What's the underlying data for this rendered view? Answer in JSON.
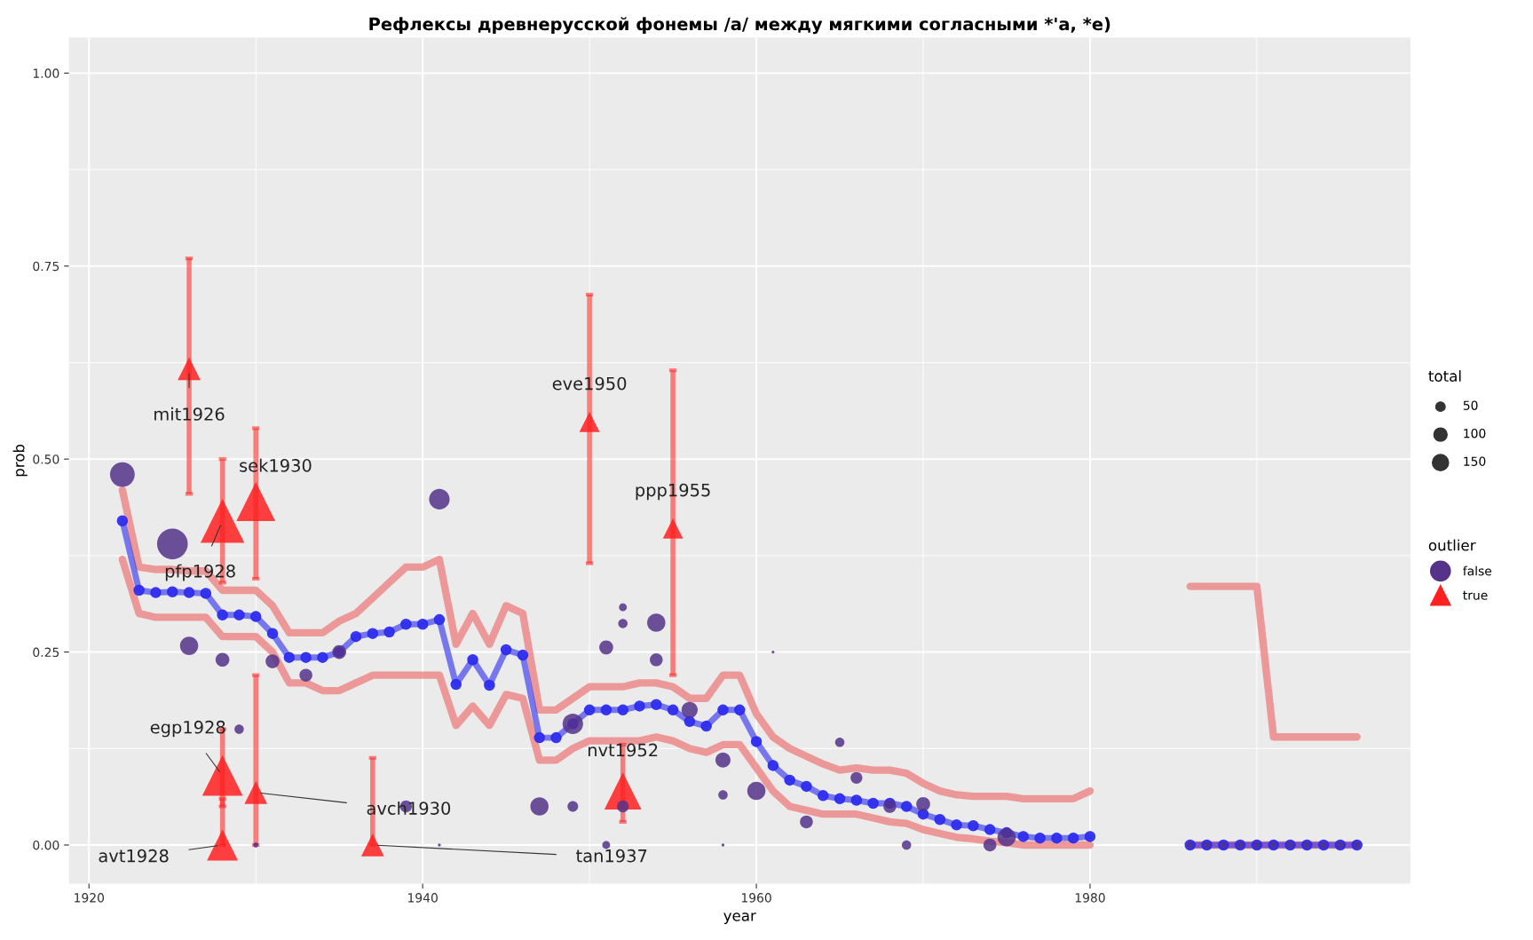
{
  "chart_data": {
    "type": "scatter",
    "title": "Рефлексы древнерусской фонемы /а/ между мягкими согласными *'а, *е)",
    "xlabel": "year",
    "ylabel": "prob",
    "xlim": [
      1918.8,
      1999.2
    ],
    "xticks": [
      1920,
      1940,
      1960,
      1980
    ],
    "ylim": [
      -0.05,
      1.046
    ],
    "yticks": [
      {
        "value": 0,
        "label": "0.00"
      },
      {
        "value": 0.25,
        "label": "0.25"
      },
      {
        "value": 0.5,
        "label": "0.50"
      },
      {
        "value": 0.75,
        "label": "0.75"
      },
      {
        "value": 1,
        "label": "1.00"
      }
    ],
    "grid": true,
    "legend": "right",
    "legend_title": [
      "total",
      "outlier"
    ],
    "size_legend": [
      50,
      100,
      150
    ],
    "series": [
      {
        "type": "line",
        "color": "#ec8a8a",
        "marker": "none",
        "x": [
          1922,
          1923,
          1924,
          1925,
          1926,
          1927,
          1928,
          1929,
          1930,
          1931,
          1932,
          1933,
          1934,
          1935,
          1936,
          1937,
          1938,
          1939,
          1940,
          1941,
          1942,
          1943,
          1944,
          1945,
          1946,
          1947,
          1948,
          1949,
          1950,
          1951,
          1952,
          1953,
          1954,
          1955,
          1956,
          1957,
          1958,
          1959,
          1960,
          1961,
          1962,
          1963,
          1964,
          1965,
          1966,
          1967,
          1968,
          1969,
          1970,
          1971,
          1972,
          1973,
          1974,
          1975,
          1976,
          1977,
          1978,
          1979,
          1980,
          1981,
          1986,
          1990,
          1991,
          1996
        ],
        "values": [
          0.46,
          0.36,
          0.357,
          0.357,
          0.355,
          0.355,
          0.33,
          0.33,
          0.33,
          0.31,
          0.275,
          0.275,
          0.275,
          0.29,
          0.3,
          0.32,
          0.34,
          0.36,
          0.36,
          0.37,
          0.26,
          0.3,
          0.26,
          0.31,
          0.3,
          0.175,
          0.175,
          0.19,
          0.205,
          0.205,
          0.205,
          0.21,
          0.21,
          0.205,
          0.19,
          0.19,
          0.22,
          0.22,
          0.17,
          0.14,
          0.125,
          0.115,
          0.105,
          0.097,
          0.1,
          0.097,
          0.097,
          0.093,
          0.08,
          0.07,
          0.065,
          0.063,
          0.063,
          0.063,
          0.06,
          0.06,
          0.06,
          0.06,
          0.07,
          null,
          0.335,
          0.335,
          0.14,
          0.14
        ]
      },
      {
        "type": "line",
        "color": "#ec8a8a",
        "marker": "none",
        "x": [
          1922,
          1923,
          1924,
          1925,
          1926,
          1927,
          1928,
          1929,
          1930,
          1931,
          1932,
          1933,
          1934,
          1935,
          1936,
          1937,
          1938,
          1939,
          1940,
          1941,
          1942,
          1943,
          1944,
          1945,
          1946,
          1947,
          1948,
          1949,
          1950,
          1951,
          1952,
          1953,
          1954,
          1955,
          1956,
          1957,
          1958,
          1959,
          1960,
          1961,
          1962,
          1963,
          1964,
          1965,
          1966,
          1967,
          1968,
          1969,
          1970,
          1971,
          1972,
          1973,
          1974,
          1975,
          1976,
          1977,
          1978,
          1979,
          1980,
          1981,
          1986,
          1996
        ],
        "values": [
          0.37,
          0.3,
          0.295,
          0.295,
          0.295,
          0.295,
          0.27,
          0.27,
          0.27,
          0.25,
          0.21,
          0.21,
          0.2,
          0.2,
          0.21,
          0.22,
          0.22,
          0.22,
          0.22,
          0.22,
          0.155,
          0.18,
          0.155,
          0.195,
          0.19,
          0.11,
          0.11,
          0.125,
          0.135,
          0.135,
          0.135,
          0.135,
          0.14,
          0.135,
          0.125,
          0.12,
          0.13,
          0.13,
          0.1,
          0.07,
          0.05,
          0.045,
          0.04,
          0.04,
          0.04,
          0.035,
          0.03,
          0.028,
          0.02,
          0.015,
          0.01,
          0.008,
          0.005,
          0.003,
          0,
          0,
          0,
          0,
          0,
          null,
          0,
          0
        ]
      },
      {
        "type": "line",
        "color": "#2a2aee",
        "marker": "circle",
        "x": [
          1922,
          1923,
          1924,
          1925,
          1926,
          1927,
          1928,
          1929,
          1930,
          1931,
          1932,
          1933,
          1934,
          1935,
          1936,
          1937,
          1938,
          1939,
          1940,
          1941,
          1942,
          1943,
          1944,
          1945,
          1946,
          1947,
          1948,
          1949,
          1950,
          1951,
          1952,
          1953,
          1954,
          1955,
          1956,
          1957,
          1958,
          1959,
          1960,
          1961,
          1962,
          1963,
          1964,
          1965,
          1966,
          1967,
          1968,
          1969,
          1970,
          1971,
          1972,
          1973,
          1974,
          1975,
          1976,
          1977,
          1978,
          1979,
          1980,
          1981,
          1986,
          1987,
          1988,
          1989,
          1990,
          1991,
          1992,
          1993,
          1994,
          1995,
          1996
        ],
        "values": [
          0.42,
          0.33,
          0.327,
          0.328,
          0.327,
          0.326,
          0.298,
          0.298,
          0.296,
          0.274,
          0.243,
          0.243,
          0.243,
          0.25,
          0.27,
          0.274,
          0.276,
          0.286,
          0.286,
          0.292,
          0.208,
          0.24,
          0.207,
          0.253,
          0.246,
          0.139,
          0.139,
          0.157,
          0.175,
          0.175,
          0.175,
          0.18,
          0.182,
          0.175,
          0.16,
          0.154,
          0.175,
          0.175,
          0.134,
          0.103,
          0.084,
          0.076,
          0.064,
          0.06,
          0.058,
          0.054,
          0.054,
          0.05,
          0.04,
          0.033,
          0.026,
          0.025,
          0.02,
          0.016,
          0.011,
          0.009,
          0.009,
          0.009,
          0.011,
          null,
          0,
          0,
          0,
          0,
          0,
          0,
          0,
          0,
          0,
          0,
          0
        ]
      },
      {
        "name": "false",
        "color": "#55338a",
        "marker": "circle",
        "x": [
          1922,
          1925,
          1926,
          1928,
          1929,
          1930,
          1931,
          1933,
          1935,
          1939,
          1941,
          1941,
          1947,
          1949,
          1949,
          1951,
          1951,
          1952,
          1952,
          1952,
          1954,
          1954,
          1956,
          1958,
          1958,
          1958,
          1960,
          1961,
          1963,
          1965,
          1966,
          1968,
          1969,
          1970,
          1974,
          1975,
          1986,
          1987,
          1988,
          1989,
          1990,
          1991,
          1992,
          1993,
          1994,
          1995,
          1996
        ],
        "values": [
          0.48,
          0.39,
          0.258,
          0.24,
          0.15,
          0,
          0.238,
          0.22,
          0.25,
          0.05,
          0.448,
          0,
          0.05,
          0.05,
          0.157,
          0,
          0.256,
          0.287,
          0.308,
          0.05,
          0.288,
          0.24,
          0.175,
          0.11,
          0.065,
          0,
          0.07,
          0.25,
          0.03,
          0.133,
          0.087,
          0.05,
          0,
          0.053,
          0,
          0.01,
          0,
          0,
          0,
          0,
          0,
          0,
          0,
          0,
          0,
          0,
          0
        ],
        "sizes": [
          350,
          540,
          190,
          110,
          50,
          15,
          110,
          95,
          110,
          80,
          240,
          5,
          190,
          65,
          240,
          35,
          110,
          50,
          35,
          80,
          190,
          95,
          150,
          130,
          50,
          5,
          190,
          5,
          95,
          50,
          80,
          95,
          50,
          110,
          95,
          190,
          25,
          25,
          25,
          25,
          25,
          25,
          25,
          25,
          25,
          25,
          25
        ]
      },
      {
        "name": "true",
        "color": "#ff2020",
        "marker": "triangle",
        "x": [
          1926,
          1928,
          1930,
          1928,
          1928,
          1930,
          1937,
          1950,
          1955,
          1952
        ],
        "values": [
          0.617,
          0.42,
          0.445,
          0.09,
          0,
          0.068,
          0,
          0.548,
          0.41,
          0.07
        ],
        "sizes": [
          190,
          700,
          550,
          600,
          350,
          190,
          190,
          150,
          150,
          500
        ],
        "errors": [
          [
            0.455,
            0.76
          ],
          [
            0.34,
            0.5
          ],
          [
            0.345,
            0.54
          ],
          [
            0.05,
            0.15
          ],
          [
            0,
            0.06
          ],
          [
            0,
            0.22
          ],
          [
            0,
            0.113
          ],
          [
            0.365,
            0.713
          ],
          [
            0.22,
            0.615
          ],
          [
            0.03,
            0.13
          ]
        ]
      }
    ],
    "annotations": [
      {
        "text": "mit1926",
        "x": 1926,
        "y": 0.617
      },
      {
        "text": "pfp1928",
        "x": 1928,
        "y": 0.42
      },
      {
        "text": "sek1930",
        "x": 1930,
        "y": 0.445
      },
      {
        "text": "egp1928",
        "x": 1928,
        "y": 0.09
      },
      {
        "text": "avt1928",
        "x": 1928,
        "y": 0
      },
      {
        "text": "avch1930",
        "x": 1930,
        "y": 0.068
      },
      {
        "text": "tan1937",
        "x": 1937,
        "y": 0
      },
      {
        "text": "eve1950",
        "x": 1950,
        "y": 0.548
      },
      {
        "text": "ppp1955",
        "x": 1955,
        "y": 0.41
      },
      {
        "text": "nvt1952",
        "x": 1952,
        "y": 0.07
      }
    ]
  }
}
